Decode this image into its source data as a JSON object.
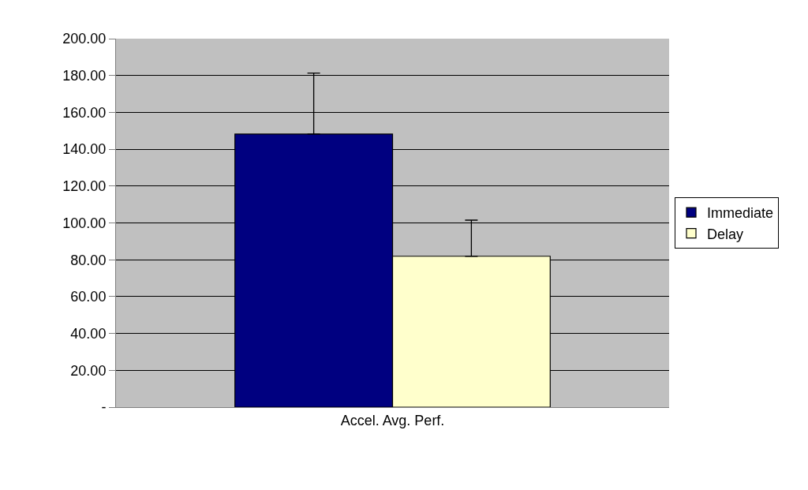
{
  "chart_data": {
    "type": "bar",
    "categories": [
      "Accel. Avg. Perf."
    ],
    "series": [
      {
        "name": "Immediate",
        "color": "#000080",
        "values": [
          148.2
        ],
        "errors": [
          [
            148.2,
            181.3
          ]
        ]
      },
      {
        "name": "Delay",
        "color": "#ffffcc",
        "values": [
          81.9
        ],
        "errors": [
          [
            81.9,
            101.5
          ]
        ]
      }
    ],
    "ylim": [
      0,
      200
    ],
    "yticks": [
      {
        "value": 0,
        "label": "-"
      },
      {
        "value": 20,
        "label": "20.00"
      },
      {
        "value": 40,
        "label": "40.00"
      },
      {
        "value": 60,
        "label": "60.00"
      },
      {
        "value": 80,
        "label": "80.00"
      },
      {
        "value": 100,
        "label": "100.00"
      },
      {
        "value": 120,
        "label": "120.00"
      },
      {
        "value": 140,
        "label": "140.00"
      },
      {
        "value": 160,
        "label": "160.00"
      },
      {
        "value": 180,
        "label": "180.00"
      },
      {
        "value": 200,
        "label": "200.00"
      }
    ],
    "grid": "y",
    "legend": "right"
  }
}
